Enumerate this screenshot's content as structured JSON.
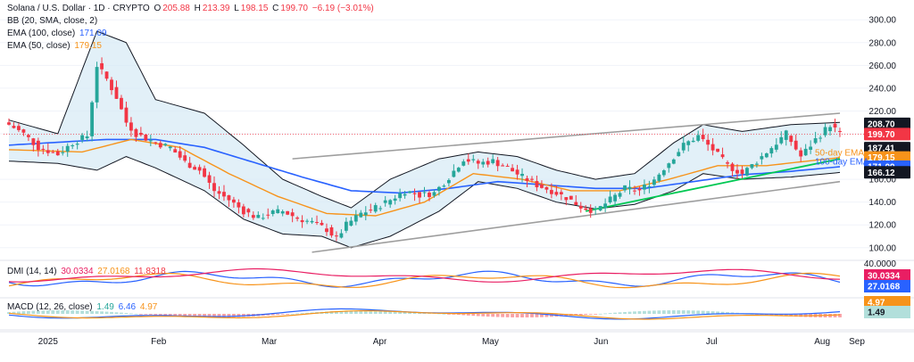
{
  "legend": {
    "symbol": "Solana / U.S. Dollar · 1D · CRYPTO",
    "o_label": "O",
    "o": "205.88",
    "h_label": "H",
    "h": "213.39",
    "l_label": "L",
    "l": "198.15",
    "c_label": "C",
    "c": "199.70",
    "change": "−6.19 (−3.01%)",
    "bb": "BB (20, SMA, close, 2)",
    "ema100": "EMA (100, close)",
    "ema100_val": "171.09",
    "ema50": "EMA (50, close)",
    "ema50_val": "179.15",
    "dmi": "DMI (14, 14)",
    "dmi_plus": "30.0334",
    "dmi_minus": "27.0168",
    "adx": "11.8318",
    "macd": "MACD (12, 26, close)",
    "macd_hist": "1.49",
    "macd_line": "6.46",
    "macd_signal": "4.97"
  },
  "colors": {
    "up": "#26a69a",
    "down": "#f23645",
    "ema50": "#f7931a",
    "ema100": "#2962ff",
    "bb": "#131722",
    "bb_fill": "#d6e9f5",
    "support": "#00c853",
    "channel": "#9e9e9e",
    "dmi_plus": "#2962ff",
    "dmi_minus": "#f7931a",
    "adx": "#e91e63",
    "macd_line": "#2962ff",
    "macd_signal": "#f7931a"
  },
  "chart_data": {
    "type": "candlestick",
    "xaxis_labels": [
      "2025",
      "Feb",
      "Mar",
      "Apr",
      "May",
      "Jun",
      "Jul",
      "Aug",
      "Sep"
    ],
    "yaxis_ticks": [
      100,
      120,
      140,
      160,
      200,
      220,
      240,
      260,
      280,
      300
    ],
    "ylim": [
      92,
      308
    ],
    "price_tags": [
      {
        "value": 208.7,
        "label": "208.70",
        "bg": "#131722",
        "fg": "#ffffff"
      },
      {
        "value": 199.7,
        "label": "199.70",
        "bg": "#f23645",
        "fg": "#ffffff"
      },
      {
        "value": 187.41,
        "label": "187.41",
        "bg": "#131722",
        "fg": "#ffffff"
      },
      {
        "value": 179.15,
        "label": "179.15",
        "bg": "#f7931a",
        "fg": "#ffffff"
      },
      {
        "value": 171.09,
        "label": "171.09",
        "bg": "#2962ff",
        "fg": "#ffffff"
      },
      {
        "value": 166.12,
        "label": "166.12",
        "bg": "#131722",
        "fg": "#ffffff"
      }
    ],
    "annotations": [
      {
        "text": "50-day EMA",
        "color": "#f7931a"
      },
      {
        "text": "100-day EMA",
        "color": "#2962ff"
      }
    ],
    "close_keypoints": [
      [
        0,
        208
      ],
      [
        3,
        200
      ],
      [
        6,
        188
      ],
      [
        10,
        182
      ],
      [
        13,
        192
      ],
      [
        16,
        198
      ],
      [
        18,
        260
      ],
      [
        20,
        248
      ],
      [
        22,
        232
      ],
      [
        24,
        210
      ],
      [
        26,
        200
      ],
      [
        28,
        196
      ],
      [
        30,
        192
      ],
      [
        33,
        188
      ],
      [
        36,
        175
      ],
      [
        39,
        168
      ],
      [
        42,
        150
      ],
      [
        45,
        142
      ],
      [
        48,
        132
      ],
      [
        51,
        126
      ],
      [
        53,
        130
      ],
      [
        56,
        132
      ],
      [
        59,
        126
      ],
      [
        62,
        122
      ],
      [
        65,
        116
      ],
      [
        67,
        108
      ],
      [
        69,
        120
      ],
      [
        72,
        130
      ],
      [
        75,
        135
      ],
      [
        78,
        142
      ],
      [
        81,
        150
      ],
      [
        84,
        146
      ],
      [
        87,
        148
      ],
      [
        90,
        162
      ],
      [
        93,
        178
      ],
      [
        96,
        174
      ],
      [
        99,
        176
      ],
      [
        102,
        170
      ],
      [
        105,
        162
      ],
      [
        108,
        155
      ],
      [
        111,
        150
      ],
      [
        114,
        144
      ],
      [
        117,
        136
      ],
      [
        120,
        132
      ],
      [
        123,
        142
      ],
      [
        126,
        152
      ],
      [
        129,
        150
      ],
      [
        132,
        160
      ],
      [
        135,
        175
      ],
      [
        138,
        190
      ],
      [
        141,
        198
      ],
      [
        144,
        186
      ],
      [
        147,
        172
      ],
      [
        150,
        165
      ],
      [
        153,
        176
      ],
      [
        156,
        188
      ],
      [
        159,
        200
      ],
      [
        162,
        180
      ],
      [
        165,
        195
      ],
      [
        168,
        208
      ],
      [
        170,
        199.7
      ]
    ],
    "ema50_keypoints": [
      [
        0,
        186
      ],
      [
        15,
        184
      ],
      [
        25,
        195
      ],
      [
        35,
        188
      ],
      [
        45,
        165
      ],
      [
        55,
        145
      ],
      [
        65,
        130
      ],
      [
        75,
        128
      ],
      [
        85,
        140
      ],
      [
        95,
        165
      ],
      [
        105,
        160
      ],
      [
        115,
        150
      ],
      [
        125,
        150
      ],
      [
        135,
        160
      ],
      [
        145,
        172
      ],
      [
        155,
        172
      ],
      [
        170,
        179.15
      ]
    ],
    "ema100_keypoints": [
      [
        0,
        190
      ],
      [
        20,
        195
      ],
      [
        30,
        195
      ],
      [
        40,
        188
      ],
      [
        50,
        175
      ],
      [
        60,
        162
      ],
      [
        70,
        150
      ],
      [
        80,
        148
      ],
      [
        90,
        152
      ],
      [
        100,
        158
      ],
      [
        110,
        155
      ],
      [
        120,
        152
      ],
      [
        130,
        152
      ],
      [
        140,
        158
      ],
      [
        150,
        164
      ],
      [
        160,
        167
      ],
      [
        170,
        171.09
      ]
    ],
    "bb_upper_keypoints": [
      [
        0,
        212
      ],
      [
        10,
        200
      ],
      [
        18,
        290
      ],
      [
        24,
        280
      ],
      [
        30,
        230
      ],
      [
        40,
        218
      ],
      [
        48,
        190
      ],
      [
        56,
        160
      ],
      [
        64,
        145
      ],
      [
        70,
        135
      ],
      [
        78,
        160
      ],
      [
        88,
        178
      ],
      [
        96,
        184
      ],
      [
        104,
        180
      ],
      [
        112,
        168
      ],
      [
        120,
        160
      ],
      [
        128,
        165
      ],
      [
        136,
        192
      ],
      [
        142,
        208
      ],
      [
        150,
        202
      ],
      [
        160,
        208
      ],
      [
        170,
        210
      ]
    ],
    "bb_lower_keypoints": [
      [
        0,
        176
      ],
      [
        10,
        174
      ],
      [
        18,
        168
      ],
      [
        24,
        180
      ],
      [
        30,
        170
      ],
      [
        40,
        150
      ],
      [
        48,
        125
      ],
      [
        56,
        112
      ],
      [
        64,
        110
      ],
      [
        70,
        100
      ],
      [
        78,
        110
      ],
      [
        88,
        132
      ],
      [
        96,
        158
      ],
      [
        104,
        152
      ],
      [
        112,
        140
      ],
      [
        120,
        134
      ],
      [
        128,
        138
      ],
      [
        136,
        150
      ],
      [
        142,
        165
      ],
      [
        150,
        160
      ],
      [
        160,
        162
      ],
      [
        170,
        166
      ]
    ],
    "channel_upper": [
      [
        58,
        178
      ],
      [
        170,
        218
      ]
    ],
    "channel_lower": [
      [
        62,
        96
      ],
      [
        170,
        158
      ]
    ],
    "support_line": [
      [
        118,
        132
      ],
      [
        170,
        178
      ]
    ],
    "dmi": {
      "plus": 30.0334,
      "minus": 27.0168,
      "adx": 11.8318,
      "ylabel": "40.0000"
    },
    "macd": {
      "line": 6.46,
      "signal": 4.97,
      "hist": 1.49
    }
  }
}
